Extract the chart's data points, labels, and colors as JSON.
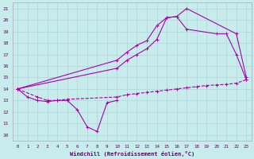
{
  "bg_color": "#c8ecec",
  "grid_color": "#b0dada",
  "line_color": "#aa00aa",
  "xlim": [
    -0.5,
    23.5
  ],
  "ylim": [
    9.5,
    21.5
  ],
  "xticks": [
    0,
    1,
    2,
    3,
    4,
    5,
    6,
    7,
    8,
    9,
    10,
    11,
    12,
    13,
    14,
    15,
    16,
    17,
    18,
    19,
    20,
    21,
    22,
    23
  ],
  "yticks": [
    10,
    11,
    12,
    13,
    14,
    15,
    16,
    17,
    18,
    19,
    20,
    21
  ],
  "xlabel": "Windchill (Refroidissement éolien,°C)",
  "line1_x": [
    0,
    1,
    2,
    3,
    4,
    5,
    6,
    7,
    8,
    9,
    10
  ],
  "line1_y": [
    14.0,
    13.3,
    13.0,
    12.9,
    13.0,
    13.0,
    12.2,
    10.7,
    10.3,
    12.8,
    13.0
  ],
  "line2_x": [
    0,
    2,
    3,
    4,
    5,
    10,
    11,
    12,
    13,
    14,
    15,
    16,
    17,
    18,
    19,
    20,
    21,
    22,
    23
  ],
  "line2_y": [
    14.0,
    13.3,
    13.0,
    13.0,
    13.1,
    13.3,
    13.5,
    13.6,
    13.7,
    13.8,
    13.9,
    14.0,
    14.1,
    14.2,
    14.3,
    14.35,
    14.4,
    14.5,
    14.8
  ],
  "line3_x": [
    0,
    10,
    11,
    12,
    13,
    14,
    15,
    16,
    17,
    20,
    21,
    22,
    23
  ],
  "line3_y": [
    14.0,
    16.5,
    17.2,
    17.8,
    18.2,
    19.5,
    20.2,
    20.3,
    19.2,
    18.8,
    18.8,
    17.0,
    14.8
  ],
  "line4_x": [
    0,
    10,
    11,
    12,
    13,
    14,
    15,
    16,
    17,
    22,
    23
  ],
  "line4_y": [
    14.0,
    15.8,
    16.5,
    17.0,
    17.5,
    18.3,
    20.2,
    20.3,
    21.0,
    18.8,
    15.0
  ]
}
